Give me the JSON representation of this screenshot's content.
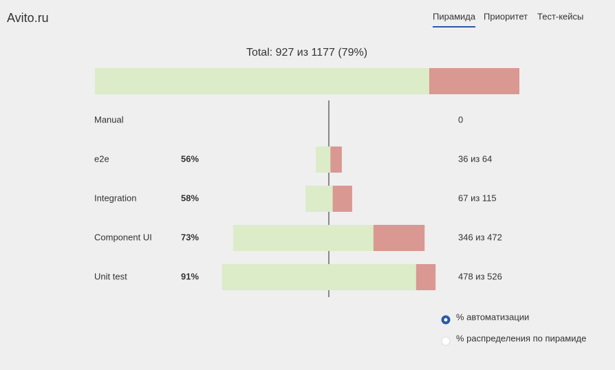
{
  "header": {
    "brand": "Avito.ru",
    "tabs": [
      "Пирамида",
      "Приоритет",
      "Тест-кейсы"
    ],
    "active_tab": 0
  },
  "total": {
    "label": "Total: 927 из 1177 (79%)",
    "automated": 927,
    "total": 1177
  },
  "rows": [
    {
      "name": "Manual",
      "count_label": "0",
      "automated": 0,
      "total": 0
    },
    {
      "name": "e2e",
      "percent_label": "56%",
      "count_label": "36 из 64",
      "automated": 36,
      "total": 64
    },
    {
      "name": "Integration",
      "percent_label": "58%",
      "count_label": "67 из 115",
      "automated": 67,
      "total": 115
    },
    {
      "name": "Component UI",
      "percent_label": "73%",
      "count_label": "346 из 472",
      "automated": 346,
      "total": 472
    },
    {
      "name": "Unit test",
      "percent_label": "91%",
      "count_label": "478 из 526",
      "automated": 478,
      "total": 526
    }
  ],
  "options": {
    "items": [
      "% автоматизации",
      "% распределения по пирамиде"
    ],
    "selected": 0
  },
  "colors": {
    "automated": "#dcebc8",
    "manual": "#d99892",
    "accent": "#2a5aa8"
  }
}
